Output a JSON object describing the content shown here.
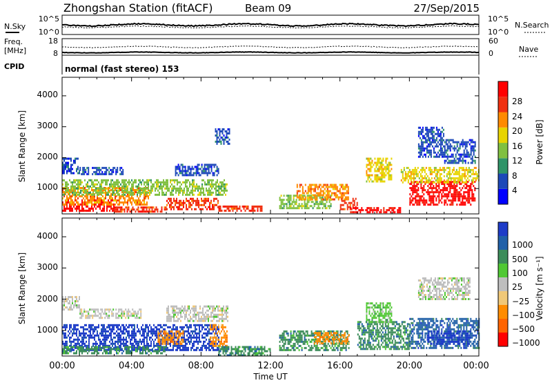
{
  "header": {
    "station": "Zhongshan Station (fitACF)",
    "beam": "Beam 09",
    "date": "27/Sep/2015"
  },
  "top_panels": {
    "nsky_label": "N.Sky",
    "nsky_ticks": [
      "10^5",
      "10^0"
    ],
    "nsearch_label": "N.Search",
    "nsearch_ticks": [
      "10^5",
      "10^0"
    ],
    "freq_label_1": "Freq.",
    "freq_label_2": "[MHz]",
    "freq_ticks": [
      "18",
      "8"
    ],
    "nave_label": "Nave",
    "nave_ticks": [
      "60",
      "0"
    ],
    "cpid_label": "CPID",
    "cpid_text": "normal (fast stereo) 153"
  },
  "x_axis": {
    "label": "Time UT",
    "ticks": [
      "00:00",
      "04:00",
      "08:00",
      "12:00",
      "16:00",
      "20:00",
      "00:00"
    ]
  },
  "chart_data": [
    {
      "type": "heatmap",
      "name": "power",
      "ylabel": "Slant Range [km]",
      "yticks": [
        "1000",
        "2000",
        "3000",
        "4000"
      ],
      "ylim_km": [
        180,
        4600
      ],
      "xlim_hours": [
        0,
        24
      ],
      "colorbar_label": "Power [dB]",
      "colorbar_ticks": [
        "4",
        "8",
        "12",
        "16",
        "20",
        "24",
        "28"
      ],
      "colorbar_colors": [
        "#0000ff",
        "#1c48b8",
        "#2f9468",
        "#80c040",
        "#e8d400",
        "#ff8a00",
        "#f03010",
        "#ff0000"
      ],
      "regions": [
        {
          "t0": 0.0,
          "t1": 3.0,
          "r0": 300,
          "r1": 650,
          "level": 7
        },
        {
          "t0": 0.0,
          "t1": 5.0,
          "r0": 500,
          "r1": 1050,
          "level": 5
        },
        {
          "t0": 0.0,
          "t1": 9.5,
          "r0": 800,
          "r1": 1300,
          "level": 3
        },
        {
          "t0": 3.0,
          "t1": 6.0,
          "r0": 220,
          "r1": 420,
          "level": 6
        },
        {
          "t0": 6.0,
          "t1": 9.0,
          "r0": 300,
          "r1": 700,
          "level": 6
        },
        {
          "t0": 9.0,
          "t1": 11.5,
          "r0": 250,
          "r1": 450,
          "level": 6
        },
        {
          "t0": 0.0,
          "t1": 1.0,
          "r0": 1500,
          "r1": 2000,
          "level": 1
        },
        {
          "t0": 1.0,
          "t1": 3.5,
          "r0": 1450,
          "r1": 1700,
          "level": 1
        },
        {
          "t0": 6.5,
          "t1": 9.0,
          "r0": 1400,
          "r1": 1800,
          "level": 1
        },
        {
          "t0": 8.8,
          "t1": 9.6,
          "r0": 2450,
          "r1": 2950,
          "level": 1
        },
        {
          "t0": 12.5,
          "t1": 15.5,
          "r0": 350,
          "r1": 800,
          "level": 3
        },
        {
          "t0": 13.5,
          "t1": 16.5,
          "r0": 650,
          "r1": 1150,
          "level": 5
        },
        {
          "t0": 16.0,
          "t1": 17.0,
          "r0": 300,
          "r1": 700,
          "level": 6
        },
        {
          "t0": 16.5,
          "t1": 19.5,
          "r0": 200,
          "r1": 400,
          "level": 7
        },
        {
          "t0": 17.5,
          "t1": 19.0,
          "r0": 1200,
          "r1": 2000,
          "level": 4
        },
        {
          "t0": 20.0,
          "t1": 23.8,
          "r0": 450,
          "r1": 1250,
          "level": 7
        },
        {
          "t0": 19.5,
          "t1": 24.0,
          "r0": 1200,
          "r1": 1700,
          "level": 4
        },
        {
          "t0": 20.5,
          "t1": 22.0,
          "r0": 2000,
          "r1": 3000,
          "level": 1
        },
        {
          "t0": 22.0,
          "t1": 23.8,
          "r0": 1800,
          "r1": 2600,
          "level": 1
        }
      ]
    },
    {
      "type": "heatmap",
      "name": "velocity",
      "ylabel": "Slant Range [km]",
      "yticks": [
        "1000",
        "2000",
        "3000",
        "4000"
      ],
      "ylim_km": [
        180,
        4600
      ],
      "xlim_hours": [
        0,
        24
      ],
      "colorbar_label": "Velocity [m s⁻¹]",
      "colorbar_ticks": [
        "1000",
        "500",
        "100",
        "25",
        "−25",
        "−100",
        "−500",
        "−1000"
      ],
      "colorbar_colors": [
        "#1e3cc8",
        "#2060a8",
        "#3c8c5a",
        "#50c834",
        "#bebebe",
        "#f0c878",
        "#ff8c00",
        "#ff6400",
        "#ff0000"
      ],
      "regions": [
        {
          "t0": 0.0,
          "t1": 9.0,
          "r0": 400,
          "r1": 1200,
          "level": 0
        },
        {
          "t0": 0.0,
          "t1": 6.0,
          "r0": 250,
          "r1": 500,
          "level": 2
        },
        {
          "t0": 5.5,
          "t1": 7.0,
          "r0": 600,
          "r1": 1000,
          "level": 6
        },
        {
          "t0": 0.0,
          "t1": 1.0,
          "r0": 1700,
          "r1": 2100,
          "level": 4
        },
        {
          "t0": 1.0,
          "t1": 4.5,
          "r0": 1400,
          "r1": 1700,
          "level": 4
        },
        {
          "t0": 6.0,
          "t1": 9.5,
          "r0": 1300,
          "r1": 1800,
          "level": 4
        },
        {
          "t0": 8.5,
          "t1": 9.5,
          "r0": 500,
          "r1": 1200,
          "level": 6
        },
        {
          "t0": 9.0,
          "t1": 12.0,
          "r0": 200,
          "r1": 500,
          "level": 2
        },
        {
          "t0": 12.5,
          "t1": 16.5,
          "r0": 350,
          "r1": 1000,
          "level": 2
        },
        {
          "t0": 14.5,
          "t1": 16.5,
          "r0": 600,
          "r1": 950,
          "level": 6
        },
        {
          "t0": 17.0,
          "t1": 20.0,
          "r0": 400,
          "r1": 1300,
          "level": 2
        },
        {
          "t0": 20.0,
          "t1": 24.0,
          "r0": 450,
          "r1": 1400,
          "level": 1
        },
        {
          "t0": 21.0,
          "t1": 23.5,
          "r0": 600,
          "r1": 1000,
          "level": 0
        },
        {
          "t0": 20.5,
          "t1": 23.5,
          "r0": 2000,
          "r1": 2700,
          "level": 4
        },
        {
          "t0": 17.5,
          "t1": 19.0,
          "r0": 1300,
          "r1": 1900,
          "level": 3
        }
      ]
    }
  ]
}
